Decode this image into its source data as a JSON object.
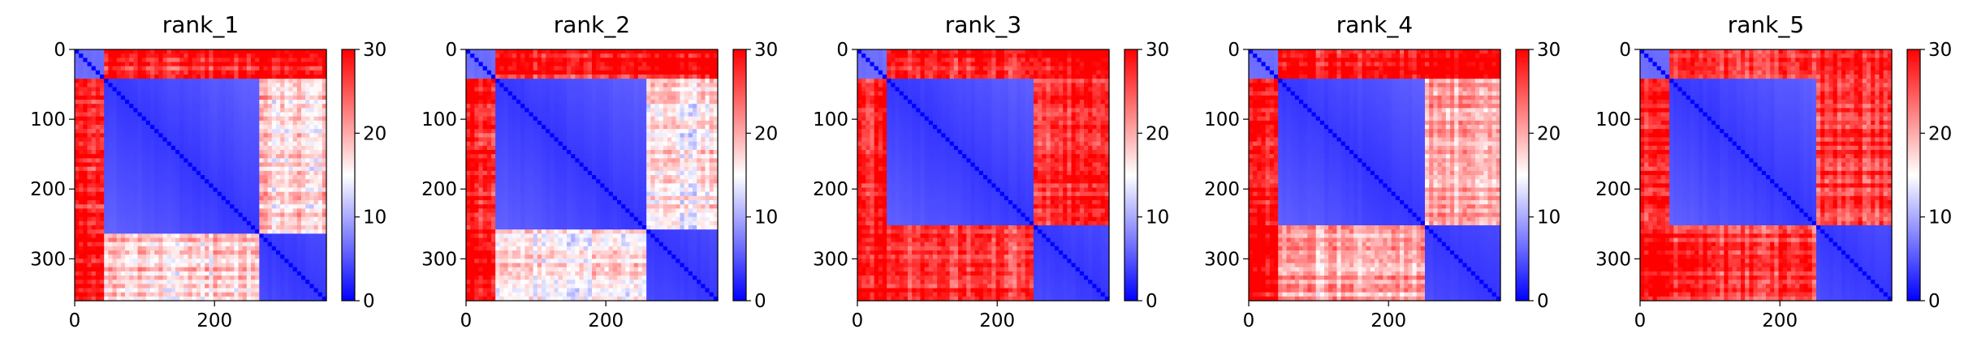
{
  "chart_data": [
    {
      "type": "heatmap",
      "title": "rank_1",
      "xlim": [
        0,
        360
      ],
      "ylim": [
        360,
        0
      ],
      "xticks": [
        0,
        200
      ],
      "yticks": [
        0,
        100,
        200,
        300
      ],
      "colorbar": {
        "min": 0,
        "max": 30,
        "ticks": [
          0,
          10,
          20,
          30
        ],
        "colormap": "bwr"
      },
      "domains": [
        [
          0,
          42
        ],
        [
          42,
          262
        ],
        [
          262,
          360
        ]
      ],
      "block_means": [
        [
          6,
          28,
          30
        ],
        [
          28,
          3,
          18
        ],
        [
          30,
          18,
          3
        ]
      ],
      "grid": false
    },
    {
      "type": "heatmap",
      "title": "rank_2",
      "xlim": [
        0,
        360
      ],
      "ylim": [
        360,
        0
      ],
      "xticks": [
        0,
        200
      ],
      "yticks": [
        0,
        100,
        200,
        300
      ],
      "colorbar": {
        "min": 0,
        "max": 30,
        "ticks": [
          0,
          10,
          20,
          30
        ],
        "colormap": "bwr"
      },
      "domains": [
        [
          0,
          42
        ],
        [
          42,
          257
        ],
        [
          257,
          360
        ]
      ],
      "block_means": [
        [
          6,
          28,
          30
        ],
        [
          28,
          3,
          16
        ],
        [
          30,
          16,
          3
        ]
      ],
      "grid": false
    },
    {
      "type": "heatmap",
      "title": "rank_3",
      "xlim": [
        0,
        360
      ],
      "ylim": [
        360,
        0
      ],
      "xticks": [
        0,
        200
      ],
      "yticks": [
        0,
        100,
        200,
        300
      ],
      "colorbar": {
        "min": 0,
        "max": 30,
        "ticks": [
          0,
          10,
          20,
          30
        ],
        "colormap": "bwr"
      },
      "domains": [
        [
          0,
          42
        ],
        [
          42,
          250
        ],
        [
          250,
          360
        ]
      ],
      "block_means": [
        [
          6,
          28,
          30
        ],
        [
          28,
          3,
          27
        ],
        [
          30,
          27,
          3
        ]
      ],
      "grid": false
    },
    {
      "type": "heatmap",
      "title": "rank_4",
      "xlim": [
        0,
        360
      ],
      "ylim": [
        360,
        0
      ],
      "xticks": [
        0,
        200
      ],
      "yticks": [
        0,
        100,
        200,
        300
      ],
      "colorbar": {
        "min": 0,
        "max": 30,
        "ticks": [
          0,
          10,
          20,
          30
        ],
        "colormap": "bwr"
      },
      "domains": [
        [
          0,
          42
        ],
        [
          42,
          255
        ],
        [
          255,
          360
        ]
      ],
      "block_means": [
        [
          6,
          28,
          30
        ],
        [
          28,
          3,
          20
        ],
        [
          30,
          20,
          3
        ]
      ],
      "grid": false
    },
    {
      "type": "heatmap",
      "title": "rank_5",
      "xlim": [
        0,
        360
      ],
      "ylim": [
        360,
        0
      ],
      "xticks": [
        0,
        200
      ],
      "yticks": [
        0,
        100,
        200,
        300
      ],
      "colorbar": {
        "min": 0,
        "max": 30,
        "ticks": [
          0,
          10,
          20,
          30
        ],
        "colormap": "bwr"
      },
      "domains": [
        [
          0,
          42
        ],
        [
          42,
          250
        ],
        [
          250,
          360
        ]
      ],
      "block_means": [
        [
          6,
          28,
          30
        ],
        [
          28,
          3,
          27
        ],
        [
          30,
          27,
          3
        ]
      ],
      "grid": false
    }
  ]
}
